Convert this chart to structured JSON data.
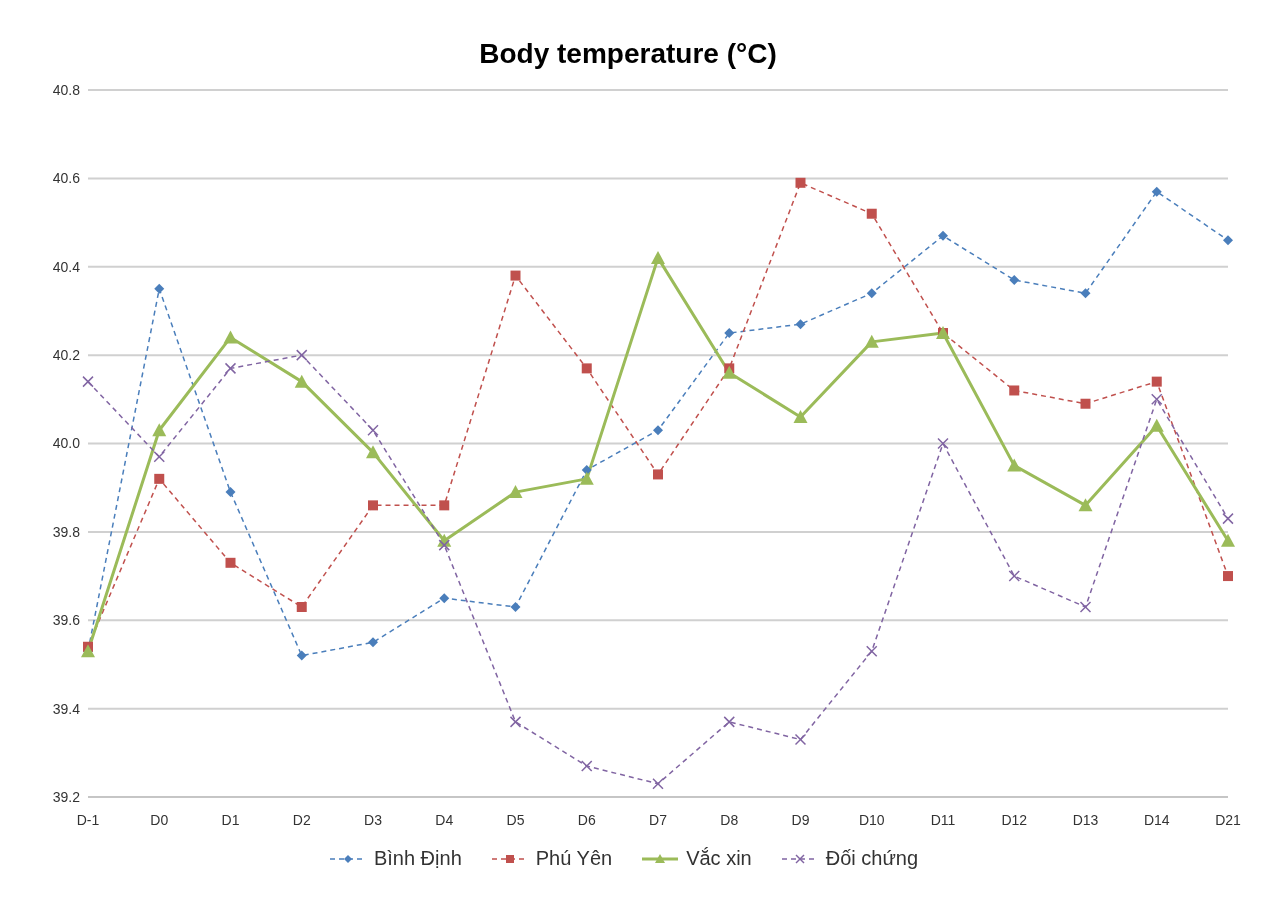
{
  "chart_data": {
    "type": "line",
    "title": "Body temperature (°C)",
    "categories": [
      "D-1",
      "D0",
      "D1",
      "D2",
      "D3",
      "D4",
      "D5",
      "D6",
      "D7",
      "D8",
      "D9",
      "D10",
      "D11",
      "D12",
      "D13",
      "D14",
      "D21"
    ],
    "series": [
      {
        "name": "Bình Định",
        "color": "#4a7ebb",
        "marker": "diamond",
        "line_style": "dashed",
        "values": [
          39.53,
          40.35,
          39.89,
          39.52,
          39.55,
          39.65,
          39.63,
          39.94,
          40.03,
          40.25,
          40.27,
          40.34,
          40.47,
          40.37,
          40.34,
          40.57,
          40.46
        ]
      },
      {
        "name": "Phú Yên",
        "color": "#c0504d",
        "marker": "square",
        "line_style": "dashed",
        "values": [
          39.54,
          39.92,
          39.73,
          39.63,
          39.86,
          39.86,
          40.38,
          40.17,
          39.93,
          40.17,
          40.59,
          40.52,
          40.25,
          40.12,
          40.09,
          40.14,
          39.7
        ]
      },
      {
        "name": "Vắc xin",
        "color": "#9bbb59",
        "marker": "triangle",
        "line_style": "solid",
        "values": [
          39.53,
          40.03,
          40.24,
          40.14,
          39.98,
          39.78,
          39.89,
          39.92,
          40.42,
          40.16,
          40.06,
          40.23,
          40.25,
          39.95,
          39.86,
          40.04,
          39.78
        ]
      },
      {
        "name": "Đối chứng",
        "color": "#8064a2",
        "marker": "cross",
        "line_style": "dashed",
        "values": [
          40.14,
          39.97,
          40.17,
          40.2,
          40.03,
          39.77,
          39.37,
          39.27,
          39.23,
          39.37,
          39.33,
          39.53,
          40.0,
          39.7,
          39.63,
          40.1,
          39.83
        ]
      }
    ],
    "ylim": [
      39.2,
      40.8
    ],
    "yticks": [
      39.2,
      39.4,
      39.6,
      39.8,
      {
        "value": 40,
        "label": "40.0"
      },
      40.2,
      40.4,
      40.6,
      40.8
    ],
    "grid": "y",
    "legend": "bottom"
  }
}
